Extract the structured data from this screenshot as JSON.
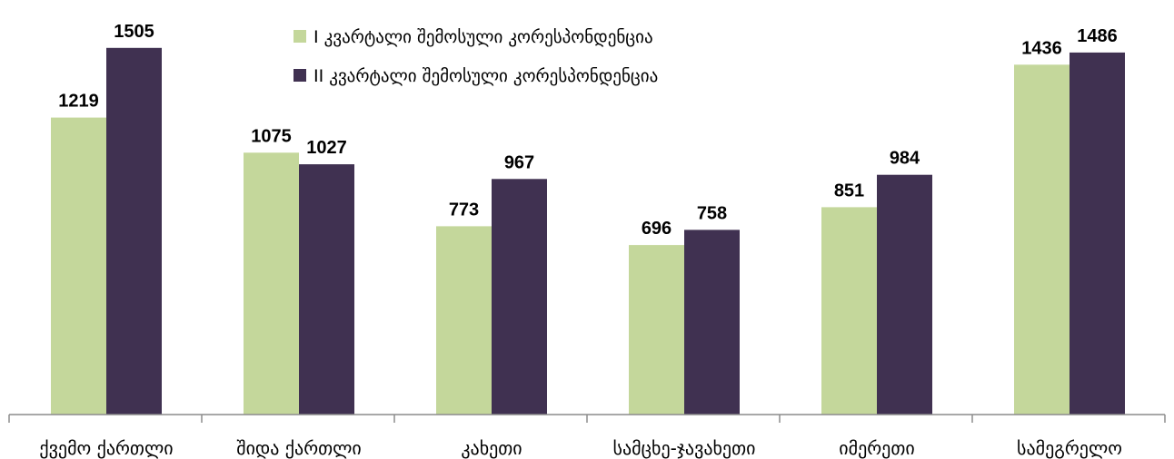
{
  "chart_data": {
    "type": "bar",
    "title": "",
    "xlabel": "",
    "ylabel": "",
    "categories": [
      "ქვემო ქართლი",
      "შიდა ქართლი",
      "კახეთი",
      "სამცხე-ჯავახეთი",
      "იმერეთი",
      "სამეგრელო"
    ],
    "series": [
      {
        "name": "I კვარტალი შემოსული კორესპონდენცია",
        "color": "#c4d79b",
        "values": [
          1219,
          1075,
          773,
          696,
          851,
          1436
        ]
      },
      {
        "name": "II კვარტალი შემოსული კორესპონდენცია",
        "color": "#403151",
        "values": [
          1505,
          1027,
          967,
          758,
          984,
          1486
        ]
      }
    ],
    "ylim": [
      0,
      1700
    ],
    "grid": false,
    "legend_position": "top-center",
    "data_labels": true
  }
}
